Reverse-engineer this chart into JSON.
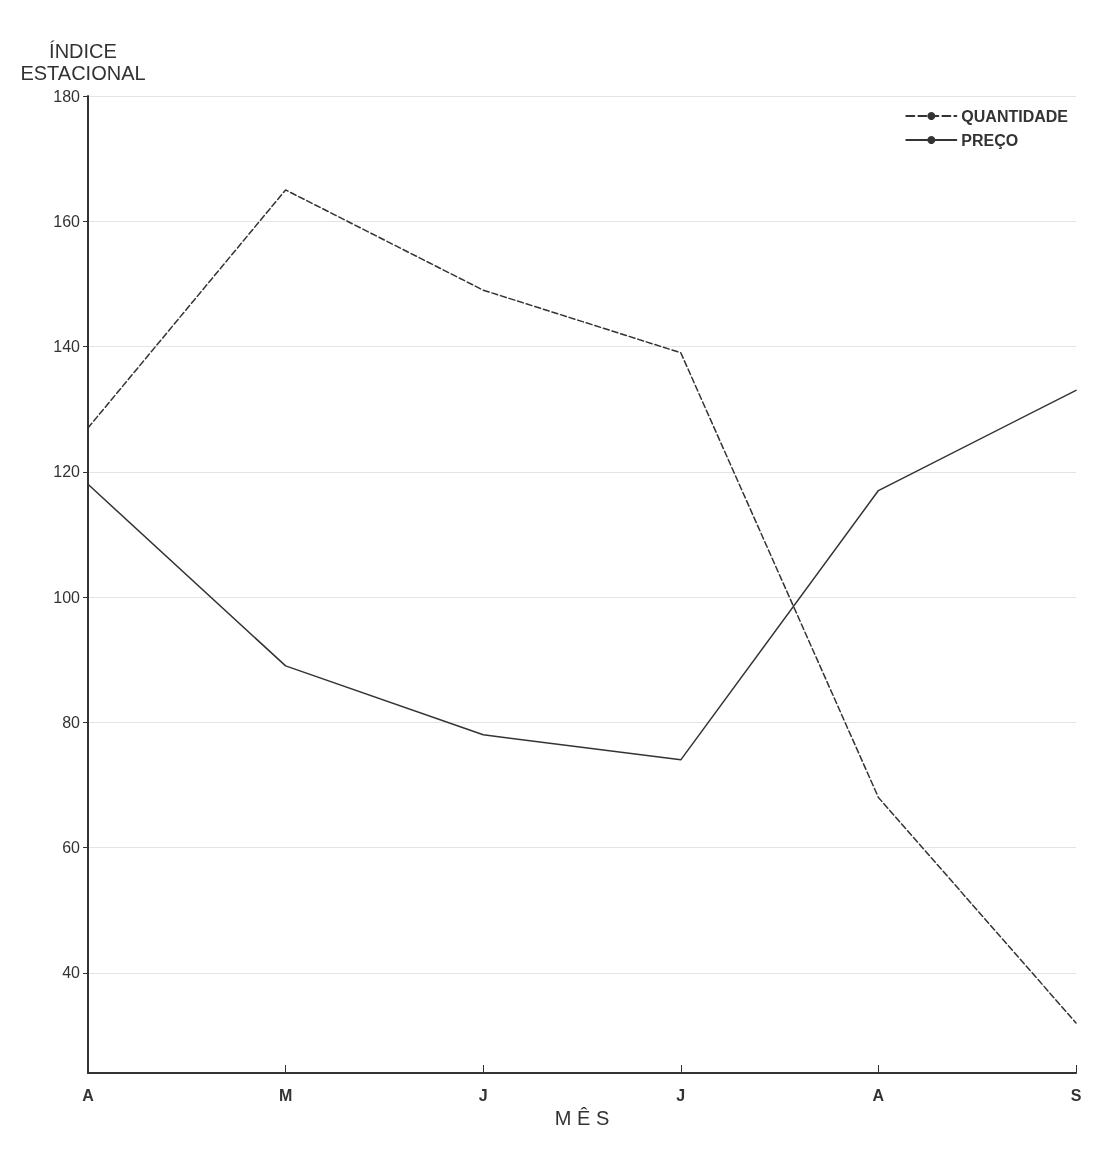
{
  "chart_data": {
    "type": "line",
    "xlabel": "M Ê S",
    "ylabel": "ÍNDICE\nESTACIONAL",
    "categories": [
      "A",
      "M",
      "J",
      "J",
      "A",
      "S"
    ],
    "series": [
      {
        "name": "QUANTIDADE",
        "color": "#333333",
        "line_style": "dashed",
        "values": [
          127,
          165,
          149,
          139,
          68,
          32
        ]
      },
      {
        "name": "PREÇO",
        "color": "#333333",
        "line_style": "solid",
        "values": [
          118,
          89,
          78,
          74,
          117,
          133
        ]
      }
    ],
    "ylim": [
      24,
      180
    ],
    "yticks": [
      40,
      60,
      80,
      100,
      120,
      140,
      160,
      180
    ],
    "grid": "y",
    "legend": "top right",
    "marker": "none"
  }
}
